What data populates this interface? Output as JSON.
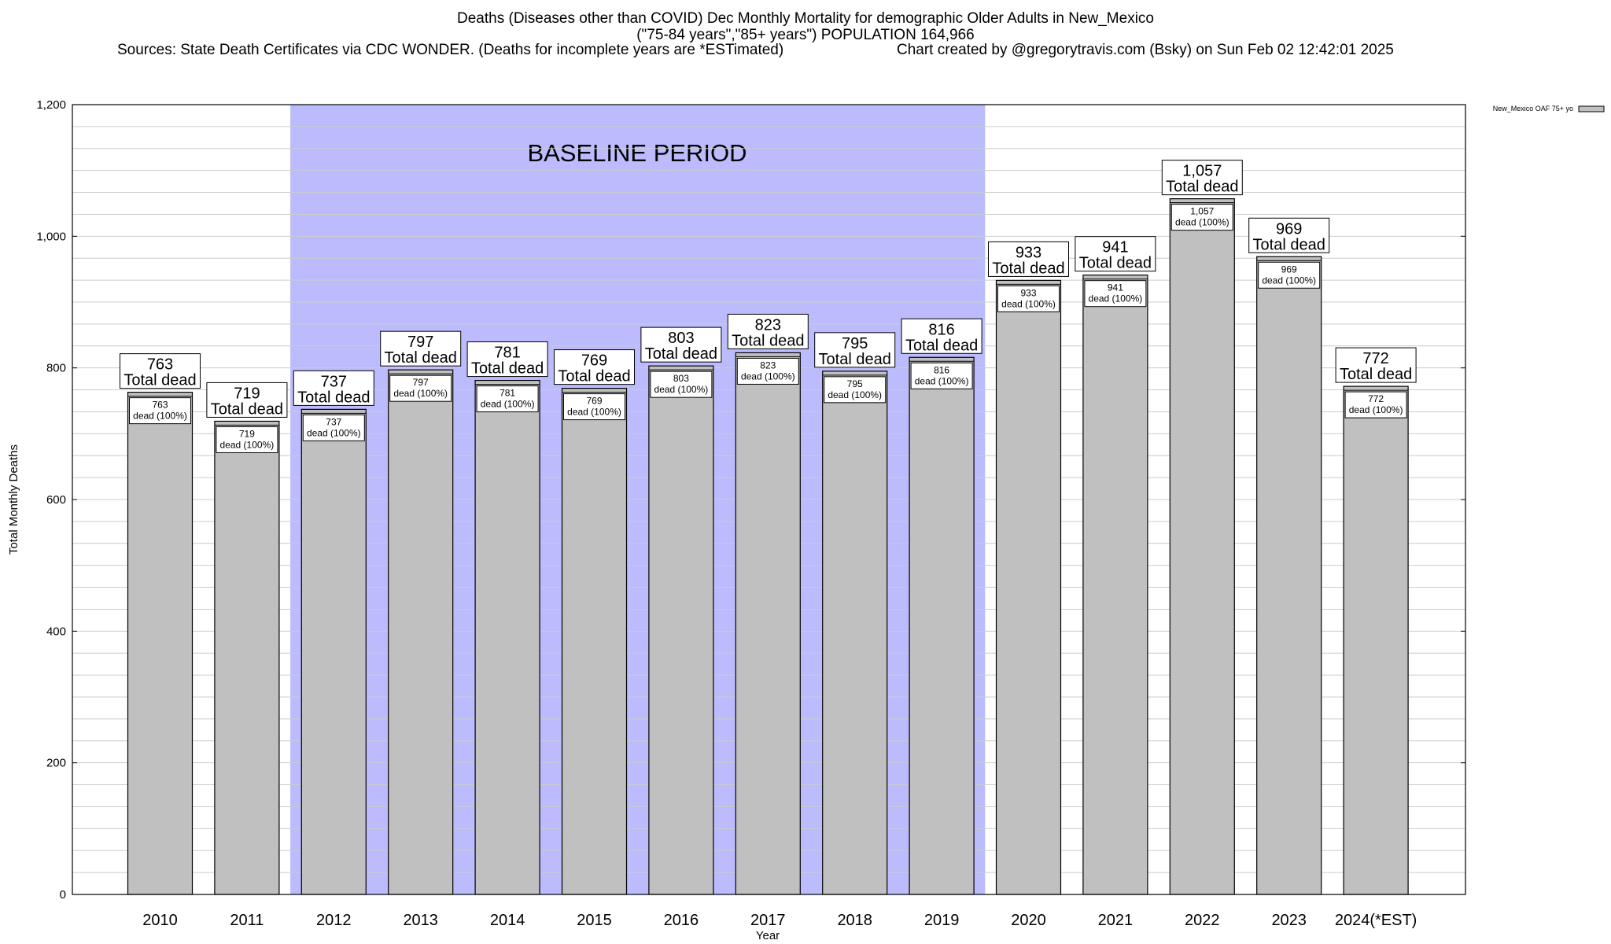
{
  "header": {
    "title_line1": "Deaths (Diseases other than COVID) Dec Monthly Mortality for demographic Older Adults in New_Mexico",
    "title_line2": "(\"75-84 years\",\"85+ years\") POPULATION 164,966",
    "sources": "Sources: State Death Certificates via CDC WONDER. (Deaths for incomplete years are *ESTimated)",
    "credit": "Chart created by @gregorytravis.com (Bsky) on Sun Feb 02 12:42:01 2025"
  },
  "colors": {
    "bar_fill": "#c0c0c0",
    "baseline_fill": "#bbbbfd",
    "grid": "#cccccc"
  },
  "chart_data": {
    "type": "bar",
    "title": "Deaths (Diseases other than COVID) Dec Monthly Mortality for demographic Older Adults in New_Mexico",
    "xlabel": "Year",
    "ylabel": "Total Monthly Deaths",
    "ylim": [
      0,
      1200
    ],
    "yticks": [
      0,
      200,
      400,
      600,
      800,
      1000,
      1200
    ],
    "ytick_labels": [
      "0",
      "200",
      "400",
      "600",
      "800",
      "1,000",
      "1,200"
    ],
    "grid": true,
    "legend": {
      "position": "top-right",
      "label": "New_Mexico OAF 75+ yo"
    },
    "categories": [
      "2010",
      "2011",
      "2012",
      "2013",
      "2014",
      "2015",
      "2016",
      "2017",
      "2018",
      "2019",
      "2020",
      "2021",
      "2022",
      "2023",
      "2024(*EST)"
    ],
    "series": [
      {
        "name": "New_Mexico OAF 75+ yo",
        "values": [
          763,
          719,
          737,
          797,
          781,
          769,
          803,
          823,
          795,
          816,
          933,
          941,
          1057,
          969,
          772
        ]
      }
    ],
    "bar_labels_top": [
      "763",
      "719",
      "737",
      "797",
      "781",
      "769",
      "803",
      "823",
      "795",
      "816",
      "933",
      "941",
      "1,057",
      "969",
      "772"
    ],
    "top_label_suffix": "Total dead",
    "inner_label_suffix": "dead (100%)",
    "baseline_period": {
      "label": "BASELINE PERIOD",
      "from": "2012",
      "to": "2019"
    }
  }
}
